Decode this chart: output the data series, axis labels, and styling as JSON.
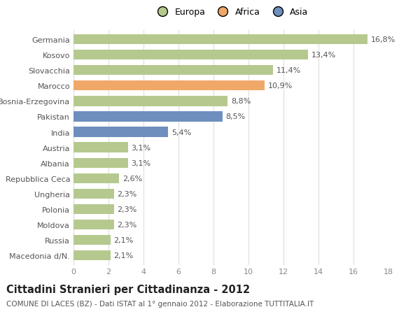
{
  "countries": [
    "Germania",
    "Kosovo",
    "Slovacchia",
    "Marocco",
    "Bosnia-Erzegovina",
    "Pakistan",
    "India",
    "Austria",
    "Albania",
    "Repubblica Ceca",
    "Ungheria",
    "Polonia",
    "Moldova",
    "Russia",
    "Macedonia d/N."
  ],
  "values": [
    16.8,
    13.4,
    11.4,
    10.9,
    8.8,
    8.5,
    5.4,
    3.1,
    3.1,
    2.6,
    2.3,
    2.3,
    2.3,
    2.1,
    2.1
  ],
  "labels": [
    "16,8%",
    "13,4%",
    "11,4%",
    "10,9%",
    "8,8%",
    "8,5%",
    "5,4%",
    "3,1%",
    "3,1%",
    "2,6%",
    "2,3%",
    "2,3%",
    "2,3%",
    "2,1%",
    "2,1%"
  ],
  "continent": [
    "Europa",
    "Europa",
    "Europa",
    "Africa",
    "Europa",
    "Asia",
    "Asia",
    "Europa",
    "Europa",
    "Europa",
    "Europa",
    "Europa",
    "Europa",
    "Europa",
    "Europa"
  ],
  "colors": {
    "Europa": "#b5c98e",
    "Africa": "#f0a868",
    "Asia": "#6e8fbe"
  },
  "title": "Cittadini Stranieri per Cittadinanza - 2012",
  "subtitle": "COMUNE DI LACES (BZ) - Dati ISTAT al 1° gennaio 2012 - Elaborazione TUTTITALIA.IT",
  "xlim": [
    0,
    18
  ],
  "xticks": [
    0,
    2,
    4,
    6,
    8,
    10,
    12,
    14,
    16,
    18
  ],
  "background_color": "#ffffff",
  "grid_color": "#dddddd",
  "bar_height": 0.65,
  "label_fontsize": 8,
  "title_fontsize": 10.5,
  "subtitle_fontsize": 7.5,
  "ytick_fontsize": 8,
  "xtick_fontsize": 8,
  "legend_fontsize": 9
}
